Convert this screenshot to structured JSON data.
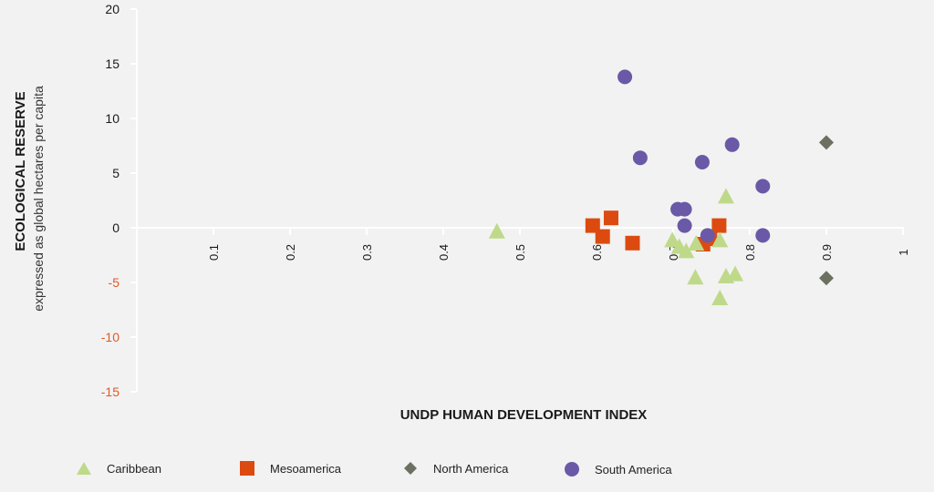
{
  "chart_data": {
    "type": "scatter",
    "title": "",
    "xlabel": "UNDP HUMAN DEVELOPMENT INDEX",
    "ylabel": "ECOLOGICAL RESERVE",
    "ylabel_sub": "expressed as global hectares per capita",
    "xlim": [
      0,
      1
    ],
    "ylim": [
      -15,
      20
    ],
    "x_ticks": [
      "0.1",
      "0.2",
      "0.3",
      "0.4",
      "0.5",
      "0.6",
      "0.7",
      "0.8",
      "0.9",
      "1"
    ],
    "x_tick_values": [
      0.1,
      0.2,
      0.3,
      0.4,
      0.5,
      0.6,
      0.7,
      0.8,
      0.9,
      1.0
    ],
    "y_ticks": [
      "20",
      "15",
      "10",
      "5",
      "0",
      "-5",
      "-10",
      "-15"
    ],
    "y_tick_values": [
      20,
      15,
      10,
      5,
      0,
      -5,
      -10,
      -15
    ],
    "negative_tick_color": "#e0592a",
    "positive_tick_color": "#1a1a1a",
    "grid": false,
    "legend_position": "bottom",
    "series": [
      {
        "name": "Caribbean",
        "marker": "triangle",
        "color": "#bfd98a",
        "points": [
          [
            0.47,
            -0.4
          ],
          [
            0.699,
            -1.2
          ],
          [
            0.708,
            -1.8
          ],
          [
            0.717,
            -2.2
          ],
          [
            0.73,
            -1.5
          ],
          [
            0.761,
            -1.2
          ],
          [
            0.769,
            2.8
          ],
          [
            0.729,
            -4.6
          ],
          [
            0.769,
            -4.5
          ],
          [
            0.781,
            -4.3
          ],
          [
            0.761,
            -6.5
          ]
        ]
      },
      {
        "name": "Mesoamerica",
        "marker": "square",
        "color": "#dc4a10",
        "points": [
          [
            0.595,
            0.2
          ],
          [
            0.619,
            0.9
          ],
          [
            0.608,
            -0.8
          ],
          [
            0.647,
            -1.4
          ],
          [
            0.76,
            0.2
          ],
          [
            0.739,
            -1.5
          ],
          [
            0.748,
            -1.0
          ]
        ]
      },
      {
        "name": "North America",
        "marker": "diamond",
        "color": "#6b7060",
        "points": [
          [
            0.9,
            7.8
          ],
          [
            0.9,
            -4.6
          ]
        ]
      },
      {
        "name": "South America",
        "marker": "circle",
        "color": "#6a59a6",
        "points": [
          [
            0.637,
            13.8
          ],
          [
            0.657,
            6.4
          ],
          [
            0.738,
            6.0
          ],
          [
            0.777,
            7.6
          ],
          [
            0.817,
            3.8
          ],
          [
            0.817,
            -0.7
          ],
          [
            0.706,
            1.7
          ],
          [
            0.715,
            1.7
          ],
          [
            0.715,
            0.2
          ],
          [
            0.745,
            -0.7
          ]
        ]
      }
    ]
  }
}
